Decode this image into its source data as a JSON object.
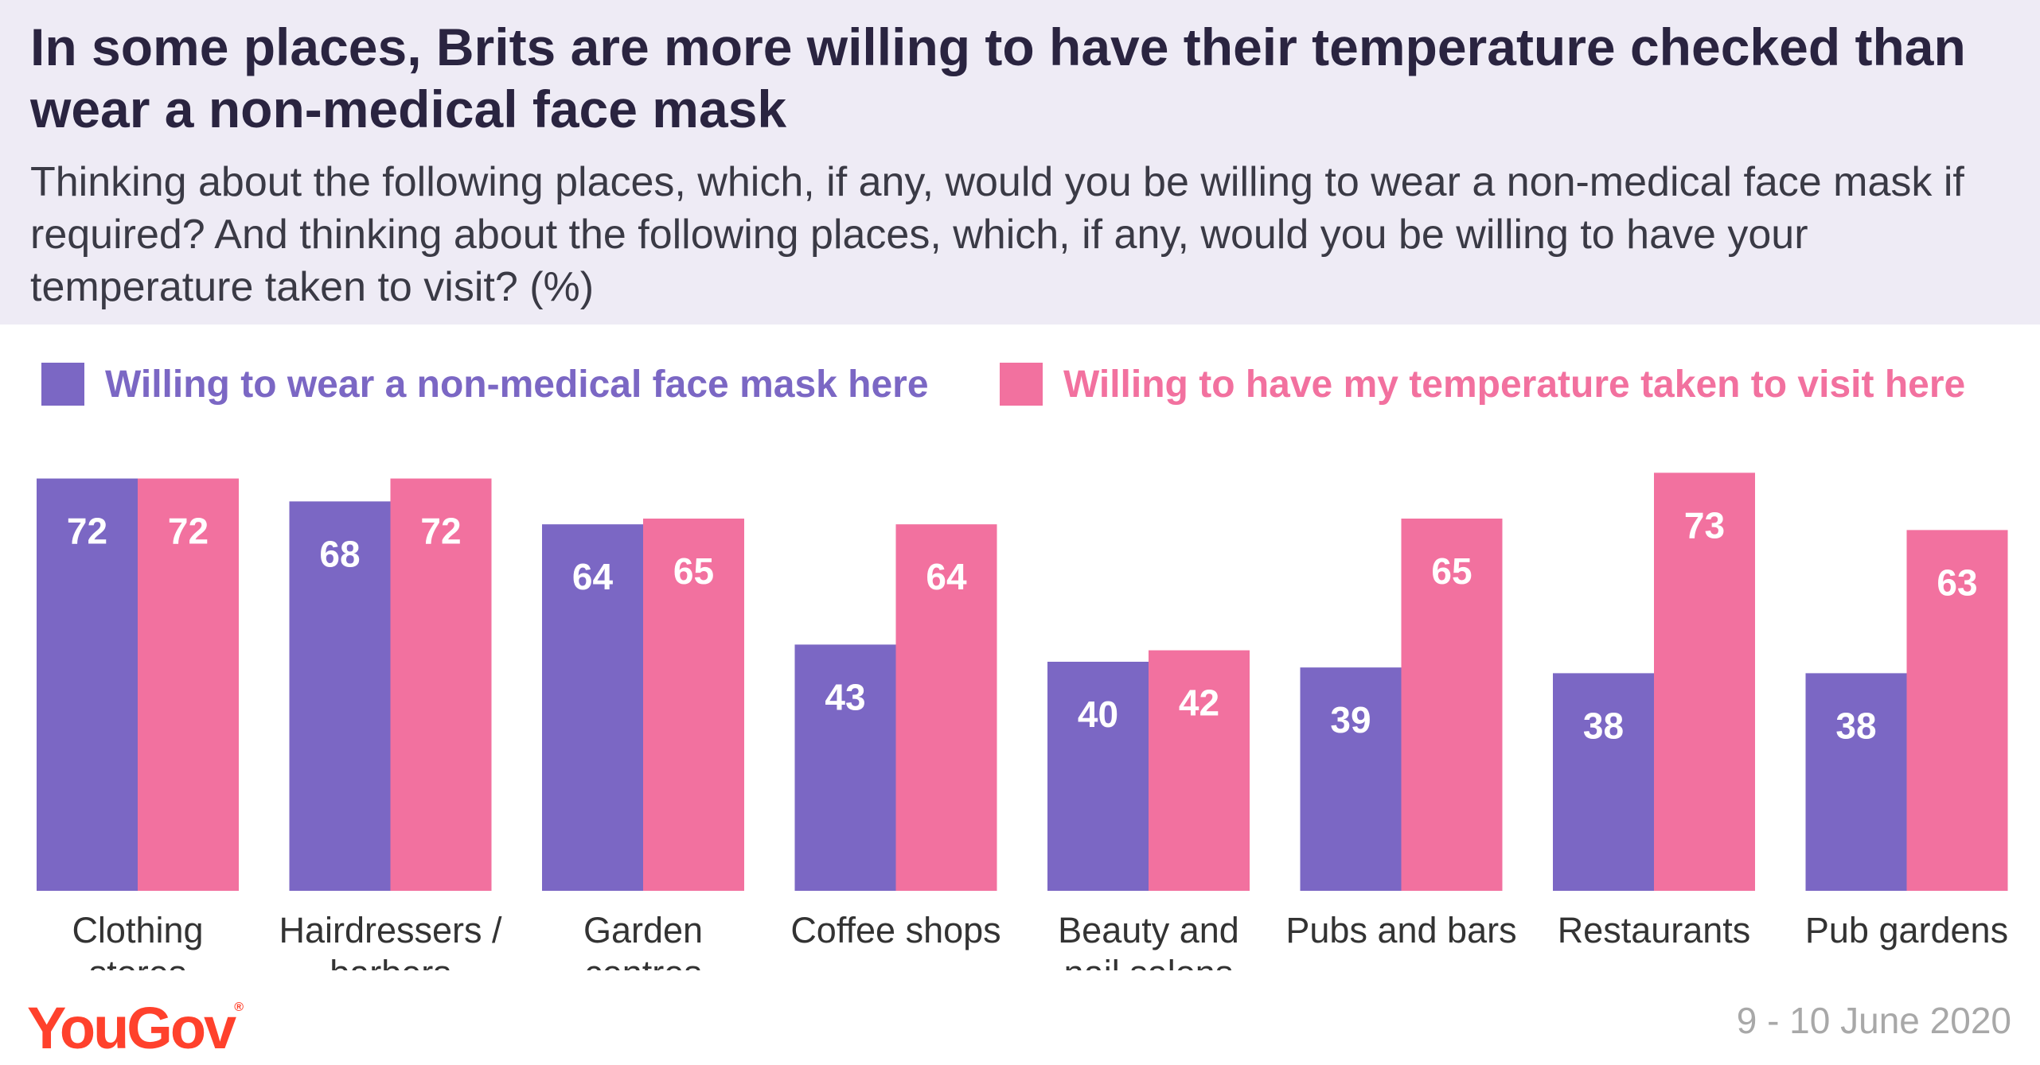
{
  "header": {
    "title": "In some places, Brits are more willing to have their temperature checked than wear a non-medical face mask",
    "subtitle": "Thinking about the following places, which, if any, would you be willing to wear a non-medical face mask if required? And thinking about the following places, which, if any, would you be willing to have your temperature taken to visit? (%)"
  },
  "legend": {
    "mask_label": "Willing to wear a non-medical face mask here",
    "temp_label": "Willing to have my temperature taken to visit here"
  },
  "footer": {
    "date": "9 - 10 June 2020",
    "logo": "YouGov",
    "logo_mark": "®"
  },
  "colors": {
    "mask": "#7b67c4",
    "temp": "#f2719f",
    "header_bg": "#eeebf5"
  },
  "chart_data": {
    "type": "bar",
    "title": "In some places, Brits are more willing to have their temperature checked than wear a non-medical face mask",
    "subtitle": "Thinking about the following places, which, if any, would you be willing to wear a non-medical face mask if required? And thinking about the following places, which, if any, would you be willing to have your temperature taken to visit? (%)",
    "categories": [
      [
        "Clothing",
        "stores"
      ],
      [
        "Hairdressers /",
        "barbers"
      ],
      [
        "Garden",
        "centres"
      ],
      [
        "Coffee shops"
      ],
      [
        "Beauty and",
        "nail salons"
      ],
      [
        "Pubs and bars"
      ],
      [
        "Restaurants"
      ],
      [
        "Pub gardens"
      ]
    ],
    "series": [
      {
        "name": "Willing to wear a non-medical face mask here",
        "color": "#7b67c4",
        "values": [
          72,
          68,
          64,
          43,
          40,
          39,
          38,
          38
        ]
      },
      {
        "name": "Willing to have my temperature taken to visit here",
        "color": "#f2719f",
        "values": [
          72,
          72,
          65,
          64,
          42,
          65,
          73,
          63
        ]
      }
    ],
    "ylim": [
      0,
      100
    ],
    "grid": false,
    "legend_position": "top"
  }
}
